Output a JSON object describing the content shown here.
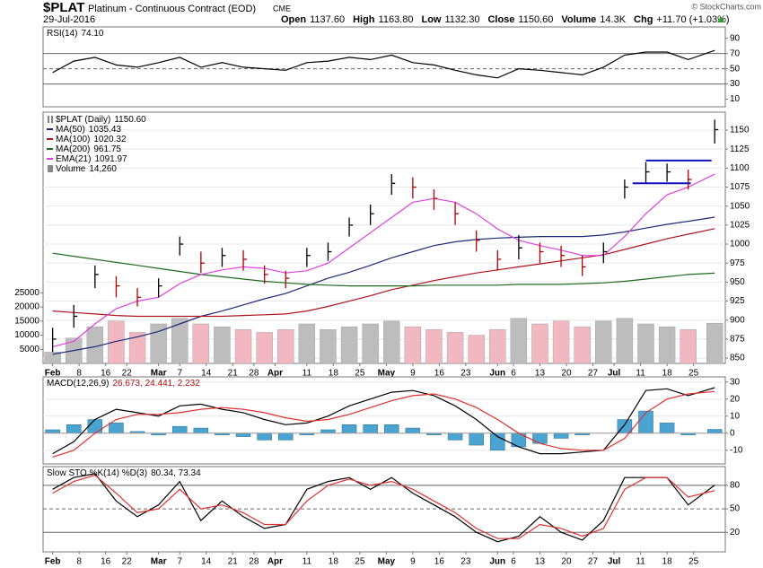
{
  "header": {
    "symbol": "$PLAT",
    "name": "Platinum - Continuous Contract (EOD)",
    "exchange": "CME",
    "date": "29-Jul-2016",
    "copyright": "© StockCharts.com",
    "stats": [
      {
        "label": "Open",
        "value": "1137.60"
      },
      {
        "label": "High",
        "value": "1163.80"
      },
      {
        "label": "Low",
        "value": "1132.30"
      },
      {
        "label": "Close",
        "value": "1150.60"
      },
      {
        "label": "Volume",
        "value": "14.3K"
      },
      {
        "label": "Chg",
        "value": "+11.70 (+1.03%)"
      }
    ]
  },
  "chart_data": [
    {
      "type": "line",
      "title": "RSI(14)",
      "title_values": "74.10",
      "x": [
        0,
        4,
        8,
        12,
        16,
        20,
        24,
        28,
        32,
        36,
        40,
        44,
        48,
        52,
        56,
        60,
        64,
        68,
        72,
        76,
        80,
        84,
        88,
        92,
        96,
        100,
        104,
        108,
        112,
        116,
        120,
        125
      ],
      "xlim": [
        -1.8,
        127
      ],
      "ylim": [
        0,
        105
      ],
      "yticks": [
        10,
        30,
        50,
        70,
        90
      ],
      "reference_lines": [
        {
          "value": 70,
          "dashed": false
        },
        {
          "value": 50,
          "dashed": true
        },
        {
          "value": 30,
          "dashed": false
        }
      ],
      "series": [
        {
          "name": "RSI(14)",
          "color": "#000000",
          "values": [
            45,
            60,
            65,
            55,
            52,
            58,
            65,
            52,
            58,
            52,
            50,
            48,
            58,
            60,
            65,
            62,
            68,
            58,
            55,
            48,
            42,
            38,
            50,
            48,
            45,
            42,
            52,
            68,
            72,
            72,
            62,
            74.1
          ]
        }
      ]
    },
    {
      "type": "ohlc",
      "x": [
        0,
        4,
        8,
        12,
        16,
        20,
        24,
        28,
        32,
        36,
        40,
        44,
        48,
        52,
        56,
        60,
        64,
        68,
        72,
        76,
        80,
        84,
        88,
        92,
        96,
        100,
        104,
        108,
        112,
        116,
        120,
        125
      ],
      "xlim": [
        -1.8,
        127
      ],
      "ylim": [
        843,
        1173.6
      ],
      "yticks": [
        850,
        875,
        900,
        925,
        950,
        975,
        1000,
        1025,
        1050,
        1075,
        1100,
        1125,
        1150
      ],
      "y2lim": [
        0,
        89000
      ],
      "y2ticks": [
        5000,
        10000,
        15000,
        20000,
        25000
      ],
      "grid": true,
      "xticks": [
        {
          "value": 0,
          "label": "Feb"
        },
        {
          "value": 5,
          "label": "8"
        },
        {
          "value": 10,
          "label": "16"
        },
        {
          "value": 14,
          "label": "22"
        },
        {
          "value": 20,
          "label": "Mar"
        },
        {
          "value": 24,
          "label": "7"
        },
        {
          "value": 29,
          "label": "14"
        },
        {
          "value": 34,
          "label": "21"
        },
        {
          "value": 38,
          "label": "28"
        },
        {
          "value": 42,
          "label": "Apr"
        },
        {
          "value": 48,
          "label": "11"
        },
        {
          "value": 53,
          "label": "18"
        },
        {
          "value": 58,
          "label": "25"
        },
        {
          "value": 63,
          "label": "May"
        },
        {
          "value": 68,
          "label": "9"
        },
        {
          "value": 73,
          "label": "16"
        },
        {
          "value": 78,
          "label": "23"
        },
        {
          "value": 84,
          "label": "Jun"
        },
        {
          "value": 87,
          "label": "6"
        },
        {
          "value": 92,
          "label": "13"
        },
        {
          "value": 97,
          "label": "20"
        },
        {
          "value": 102,
          "label": "27"
        },
        {
          "value": 106,
          "label": "Jul"
        },
        {
          "value": 111,
          "label": "11"
        },
        {
          "value": 116,
          "label": "18"
        },
        {
          "value": 121,
          "label": "25"
        }
      ],
      "price": {
        "name": "$PLAT (Daily)",
        "label": "1150.60",
        "color": "#000000",
        "down_color": "#b00000",
        "high": [
          890,
          920,
          972,
          958,
          942,
          955,
          1010,
          990,
          995,
          992,
          972,
          965,
          995,
          1002,
          1035,
          1052,
          1092,
          1088,
          1072,
          1055,
          1018,
          992,
          1012,
          1002,
          998,
          985,
          1002,
          1085,
          1108,
          1106,
          1098,
          1163.8
        ],
        "low": [
          858,
          890,
          942,
          930,
          918,
          930,
          985,
          962,
          970,
          965,
          948,
          942,
          970,
          978,
          1010,
          1025,
          1065,
          1060,
          1045,
          1025,
          990,
          965,
          980,
          975,
          970,
          958,
          975,
          1060,
          1080,
          1082,
          1072,
          1132.3
        ],
        "close": [
          875,
          905,
          960,
          945,
          930,
          945,
          1000,
          975,
          985,
          980,
          960,
          955,
          985,
          990,
          1025,
          1040,
          1080,
          1075,
          1060,
          1040,
          1005,
          980,
          995,
          990,
          985,
          970,
          990,
          1075,
          1095,
          1095,
          1085,
          1150.6
        ]
      },
      "series": [
        {
          "name": "MA(50)",
          "color": "#1f2a7a",
          "values": [
            855,
            860,
            865,
            872,
            878,
            885,
            895,
            905,
            912,
            920,
            928,
            935,
            945,
            955,
            963,
            972,
            982,
            990,
            998,
            1003,
            1006,
            1008,
            1009,
            1010,
            1010,
            1010,
            1012,
            1016,
            1021,
            1026,
            1030,
            1035.43
          ]
        },
        {
          "name": "MA(100)",
          "color": "#b0141e",
          "values": [
            912,
            910,
            908,
            906,
            905,
            905,
            905,
            905,
            905,
            906,
            907,
            908,
            912,
            918,
            925,
            932,
            940,
            946,
            952,
            957,
            962,
            966,
            970,
            974,
            978,
            982,
            986,
            993,
            1000,
            1007,
            1013,
            1020.32
          ]
        },
        {
          "name": "MA(200)",
          "color": "#1e6b1e",
          "values": [
            988,
            984,
            980,
            976,
            972,
            968,
            964,
            960,
            957,
            954,
            951,
            949,
            947,
            946,
            945,
            945,
            945,
            945,
            946,
            946,
            946,
            946,
            947,
            947,
            947,
            948,
            949,
            951,
            954,
            957,
            960,
            961.75
          ]
        },
        {
          "name": "EMA(21)",
          "color": "#e040e0",
          "values": [
            865,
            872,
            895,
            915,
            925,
            930,
            948,
            960,
            966,
            970,
            968,
            962,
            965,
            975,
            995,
            1015,
            1035,
            1055,
            1060,
            1055,
            1040,
            1020,
            1005,
            998,
            992,
            985,
            985,
            1010,
            1040,
            1065,
            1075,
            1091.97
          ]
        }
      ],
      "volume": {
        "name": "Volume",
        "label": "14,260",
        "axis": "y2",
        "color": "#bdbdbd",
        "down_color": "#f2b8c2",
        "values": [
          4000,
          9000,
          13000,
          15000,
          11000,
          14000,
          16000,
          14000,
          13000,
          12000,
          11000,
          12000,
          14000,
          12000,
          13000,
          14000,
          15000,
          13000,
          12000,
          11000,
          10000,
          12000,
          16000,
          14000,
          15000,
          13000,
          15000,
          16000,
          14000,
          13000,
          12000,
          14260
        ]
      },
      "level_color": "#1010c0",
      "levels": [
        {
          "value": 1110,
          "x": [
            112,
            124.4
          ]
        },
        {
          "value": 1080,
          "x": [
            109.5,
            120.5
          ]
        }
      ]
    },
    {
      "type": "macd",
      "title": "MACD(12,26,9)",
      "title_values": "26.673, 24.441, 2.232",
      "x": [
        0,
        4,
        8,
        12,
        16,
        20,
        24,
        28,
        32,
        36,
        40,
        44,
        48,
        52,
        56,
        60,
        64,
        68,
        72,
        76,
        80,
        84,
        88,
        92,
        96,
        100,
        104,
        108,
        112,
        116,
        120,
        125
      ],
      "xlim": [
        -1.8,
        127
      ],
      "ylim": [
        -18,
        33
      ],
      "yticks": [
        -10,
        0,
        10,
        20,
        30
      ],
      "grid": true,
      "series": [
        {
          "name": "MACD",
          "color": "#000000",
          "values": [
            -12,
            -5,
            8,
            14,
            12,
            10,
            16,
            17,
            14,
            12,
            8,
            5,
            6,
            10,
            16,
            20,
            24,
            25,
            22,
            16,
            8,
            -2,
            -8,
            -12,
            -12,
            -11,
            -10,
            5,
            25,
            26,
            22,
            26.673
          ]
        },
        {
          "name": "Signal",
          "color": "#e03030",
          "values": [
            -14,
            -10,
            0,
            8,
            11,
            11,
            12,
            14,
            15,
            14,
            12,
            9,
            7,
            8,
            11,
            15,
            19,
            22,
            23,
            20,
            15,
            8,
            0,
            -6,
            -9,
            -10,
            -10,
            -3,
            12,
            20,
            23,
            24.441
          ]
        }
      ],
      "histogram": {
        "color": "#4aa3d0",
        "values": [
          2,
          5,
          8,
          6,
          1,
          -1,
          4,
          3,
          -1,
          -2,
          -4,
          -4,
          -1,
          2,
          5,
          5,
          5,
          3,
          -1,
          -4,
          -7,
          -10,
          -8,
          -6,
          -3,
          -1,
          0,
          8,
          13,
          6,
          -1,
          2.232
        ]
      }
    },
    {
      "type": "line",
      "title": "Slow STO %K(14) %D(3)",
      "title_values": "80.34, 73.34",
      "x": [
        0,
        4,
        8,
        12,
        16,
        20,
        24,
        28,
        32,
        36,
        40,
        44,
        48,
        52,
        56,
        60,
        64,
        68,
        72,
        76,
        80,
        84,
        88,
        92,
        96,
        100,
        104,
        108,
        112,
        116,
        120,
        125
      ],
      "xlim": [
        -1.8,
        127
      ],
      "ylim": [
        -5,
        104
      ],
      "yticks": [
        20,
        50,
        80
      ],
      "reference_lines": [
        {
          "value": 80,
          "dashed": false
        },
        {
          "value": 50,
          "dashed": true
        },
        {
          "value": 20,
          "dashed": false
        }
      ],
      "xticks": [
        {
          "value": 0,
          "label": "Feb"
        },
        {
          "value": 5,
          "label": "8"
        },
        {
          "value": 10,
          "label": "16"
        },
        {
          "value": 14,
          "label": "22"
        },
        {
          "value": 20,
          "label": "Mar"
        },
        {
          "value": 24,
          "label": "7"
        },
        {
          "value": 29,
          "label": "14"
        },
        {
          "value": 34,
          "label": "21"
        },
        {
          "value": 38,
          "label": "28"
        },
        {
          "value": 42,
          "label": "Apr"
        },
        {
          "value": 48,
          "label": "11"
        },
        {
          "value": 53,
          "label": "18"
        },
        {
          "value": 58,
          "label": "25"
        },
        {
          "value": 63,
          "label": "May"
        },
        {
          "value": 68,
          "label": "9"
        },
        {
          "value": 73,
          "label": "16"
        },
        {
          "value": 78,
          "label": "23"
        },
        {
          "value": 84,
          "label": "Jun"
        },
        {
          "value": 87,
          "label": "6"
        },
        {
          "value": 92,
          "label": "13"
        },
        {
          "value": 97,
          "label": "20"
        },
        {
          "value": 102,
          "label": "27"
        },
        {
          "value": 106,
          "label": "Jul"
        },
        {
          "value": 111,
          "label": "11"
        },
        {
          "value": 116,
          "label": "18"
        },
        {
          "value": 121,
          "label": "25"
        }
      ],
      "series": [
        {
          "name": "%K",
          "color": "#000000",
          "values": [
            75,
            90,
            95,
            60,
            40,
            55,
            85,
            35,
            60,
            40,
            25,
            30,
            75,
            85,
            90,
            75,
            90,
            70,
            55,
            40,
            20,
            8,
            15,
            40,
            20,
            10,
            35,
            90,
            90,
            90,
            55,
            80.34
          ]
        },
        {
          "name": "%D",
          "color": "#e03030",
          "values": [
            70,
            85,
            93,
            70,
            45,
            50,
            75,
            50,
            55,
            45,
            30,
            30,
            60,
            80,
            88,
            80,
            85,
            75,
            60,
            45,
            25,
            12,
            12,
            30,
            25,
            15,
            25,
            75,
            90,
            90,
            65,
            73.34
          ]
        }
      ]
    }
  ]
}
